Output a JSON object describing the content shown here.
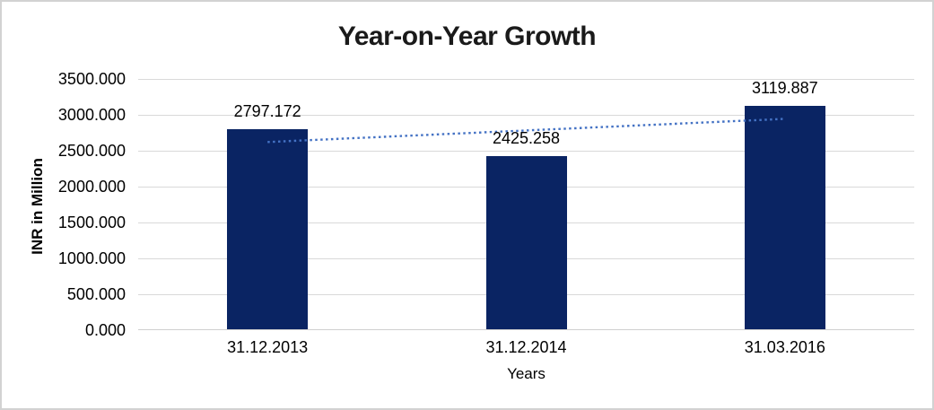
{
  "frame": {
    "background": "#FFFFFF",
    "border_color": "#D2D2D2"
  },
  "chart_data": {
    "type": "bar",
    "title": "Year-on-Year Growth",
    "xlabel": "Years",
    "ylabel": "INR in Million",
    "categories": [
      "31.12.2013",
      "31.12.2014",
      "31.03.2016"
    ],
    "values": [
      2797.172,
      2425.258,
      3119.887
    ],
    "data_labels": [
      "2797.172",
      "2425.258",
      "3119.887"
    ],
    "ylim": [
      0,
      3500
    ],
    "y_tick_step": 500,
    "y_tick_labels": [
      "0.000",
      "500.000",
      "1000.000",
      "1500.000",
      "2000.000",
      "2500.000",
      "3000.000",
      "3500.000"
    ],
    "grid": true,
    "legend": "none",
    "bar_color": "#0A2463",
    "gridline_color": "#D9D9D9",
    "text_color": "#000000",
    "title_color": "#1A1A1A",
    "trendline": {
      "type": "linear",
      "style": "dotted",
      "color": "#4472C4",
      "y_start": 2621.1,
      "y_end": 2943.8
    }
  }
}
